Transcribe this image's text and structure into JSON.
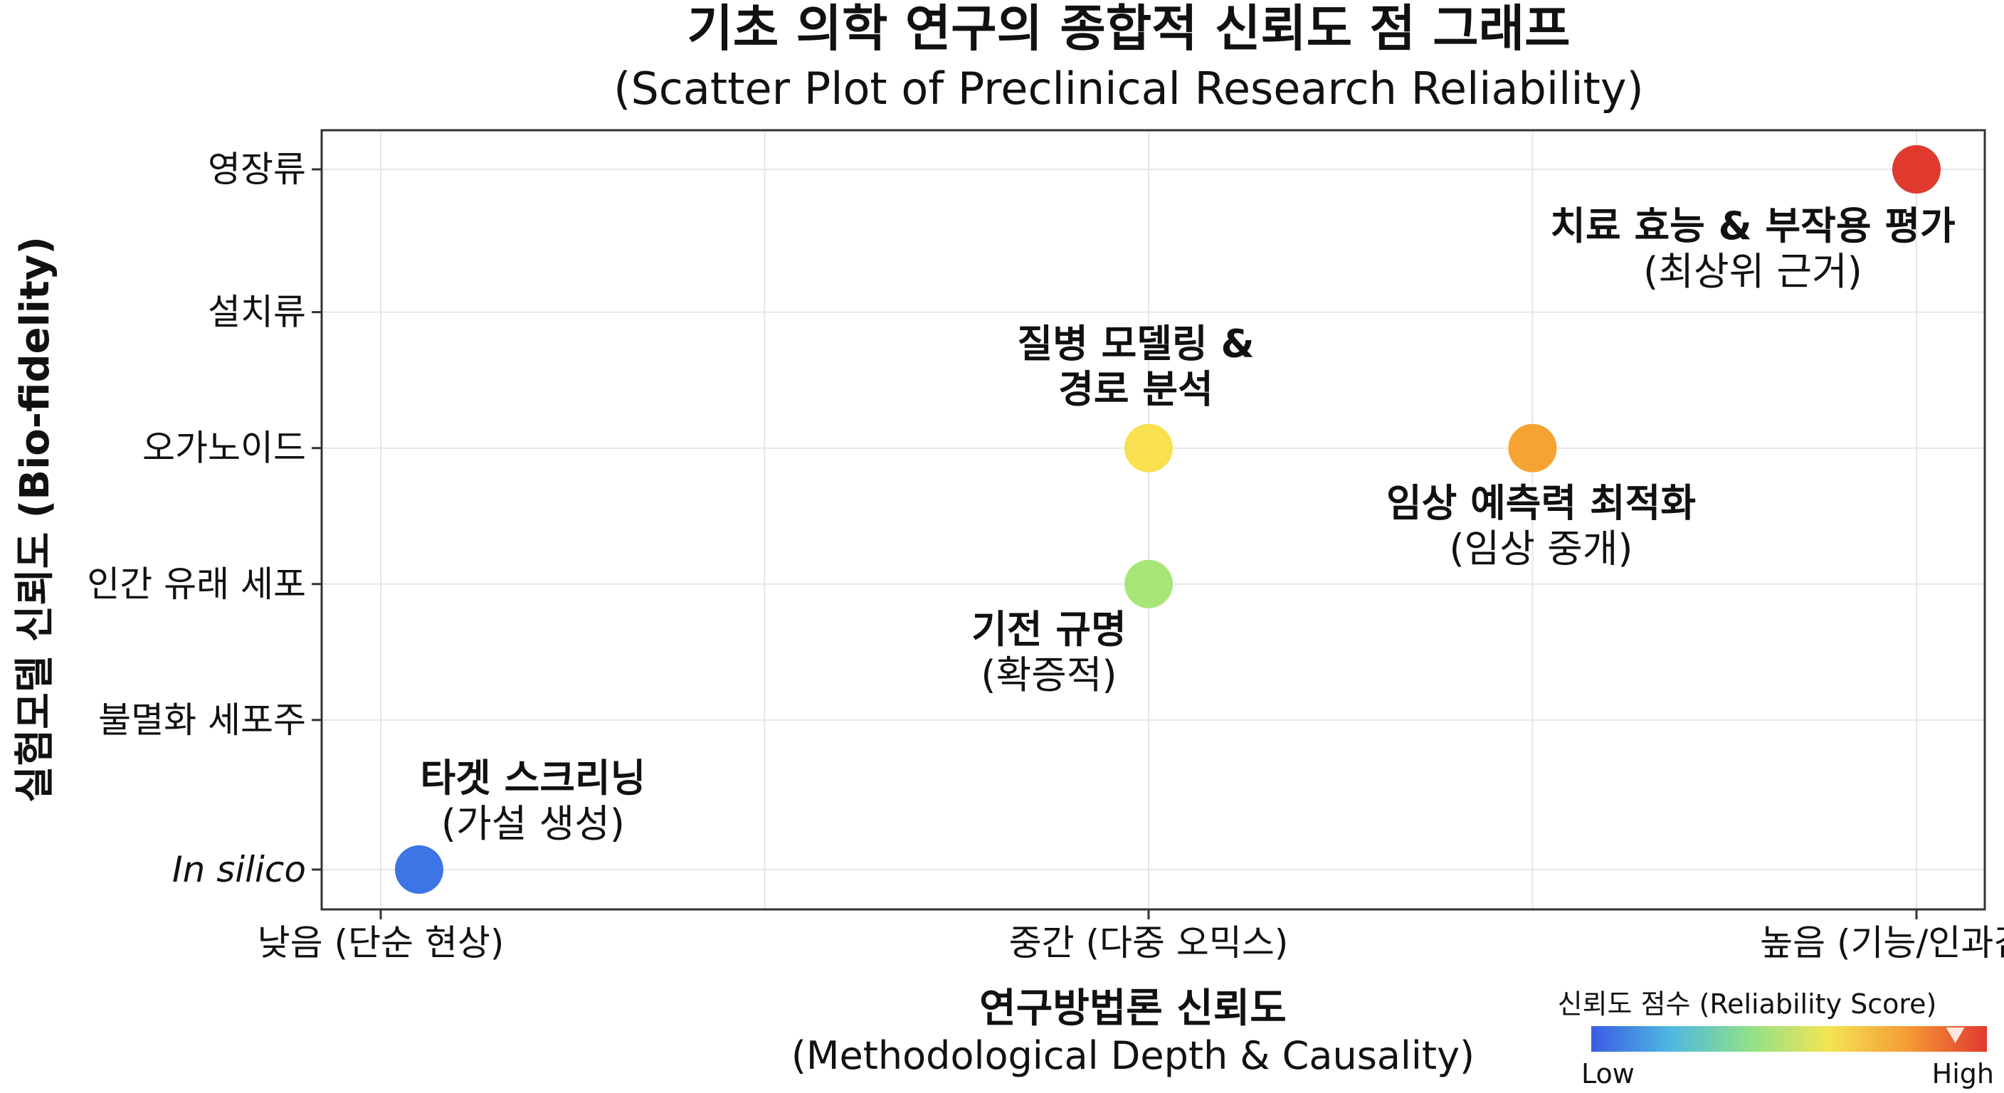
{
  "chart_data": {
    "type": "scatter",
    "title": "기초 의학 연구의 종합적 신뢰도 점 그래프",
    "subtitle": "(Scatter Plot of Preclinical Research Reliability)",
    "xlabel": "연구방법론 신뢰도",
    "xlabel_sub": "(Methodological Depth & Causality)",
    "ylabel": "실험모델 신뢰도 (Bio-fidelity)",
    "x_ticks": [
      {
        "value": 0,
        "label": "낮음 (단순 현상)"
      },
      {
        "value": 2,
        "label": "중간 (다중 오믹스)"
      },
      {
        "value": 4,
        "label": "높음 (기능/인과검증)"
      }
    ],
    "y_ticks": [
      {
        "value": 0,
        "label": "In silico",
        "italic": true
      },
      {
        "value": 1.1,
        "label": "불멸화 세포주"
      },
      {
        "value": 2.1,
        "label": "인간 유래 세포"
      },
      {
        "value": 3.1,
        "label": "오가노이드"
      },
      {
        "value": 4.1,
        "label": "설치류"
      },
      {
        "value": 5.15,
        "label": "영장류"
      }
    ],
    "xlim": [
      0,
      4
    ],
    "ylim": [
      -0.3,
      5.45
    ],
    "grid": true,
    "points": [
      {
        "x": 0.1,
        "y": 0,
        "color": "#3b75e6",
        "score": 0.05,
        "label": "타겟 스크리닝",
        "sublabel": "(가설 생성)"
      },
      {
        "x": 2.0,
        "y": 2.1,
        "color": "#a8e67a",
        "score": 0.4,
        "label": "기전 규명",
        "sublabel": "(확증적)"
      },
      {
        "x": 2.0,
        "y": 3.1,
        "color": "#f8e04e",
        "score": 0.62,
        "label": "질병 모델링 &",
        "label2": "경로 분석"
      },
      {
        "x": 3.0,
        "y": 3.1,
        "color": "#f7a331",
        "score": 0.78,
        "label": "임상 예측력 최적화",
        "sublabel": "(임상 중개)"
      },
      {
        "x": 4.0,
        "y": 5.15,
        "color": "#e0392e",
        "score": 0.96,
        "label": "치료 효능 & 부작용 평가",
        "sublabel": "(최상위 근거)"
      }
    ],
    "colorbar": {
      "title": "신뢰도 점수 (Reliability Score)",
      "low_label": "Low",
      "high_label": "High",
      "colors": [
        "#3b5ce4",
        "#4fb8e0",
        "#8fe08a",
        "#f3e553",
        "#f59a36",
        "#e0392e"
      ],
      "marker_value": 0.92
    }
  }
}
